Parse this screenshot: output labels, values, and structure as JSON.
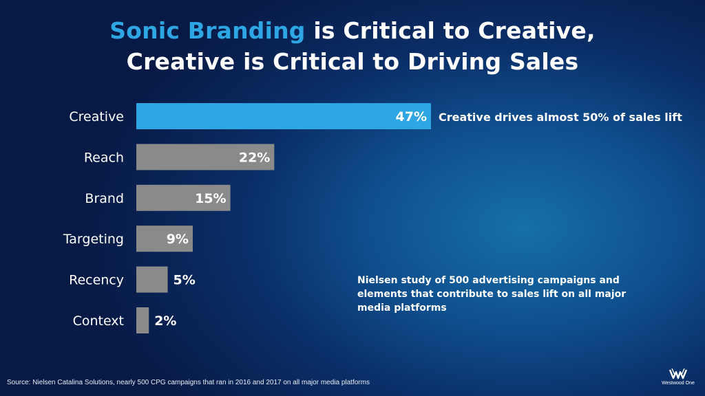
{
  "title": {
    "highlight": "Sonic Branding",
    "line1_rest": " is Critical to Creative,",
    "line2": "Creative is Critical to Driving Sales"
  },
  "colors": {
    "highlight_bar": "#2ea6e3",
    "default_bar": "#8a8a8a",
    "title_accent": "#2ea6e3"
  },
  "chart_data": {
    "type": "bar",
    "orientation": "horizontal",
    "categories": [
      "Creative",
      "Reach",
      "Brand",
      "Targeting",
      "Recency",
      "Context"
    ],
    "values": [
      47,
      22,
      15,
      9,
      5,
      2
    ],
    "value_labels": [
      "47%",
      "22%",
      "15%",
      "9%",
      "5%",
      "2%"
    ],
    "highlight_index": 0,
    "xlim": [
      0,
      47
    ],
    "grid": false,
    "legend": "none"
  },
  "annotation": "Creative drives almost 50% of sales lift",
  "note": "Nielsen study of 500 advertising campaigns and elements that contribute to sales lift on all major media platforms",
  "source": "Source: Nielsen Catalina Solutions, nearly 500 CPG campaigns that ran in 2016 and 2017 on all major media platforms",
  "logo": {
    "icon": "westwood-one-logo-icon",
    "text": "Westwood One"
  }
}
